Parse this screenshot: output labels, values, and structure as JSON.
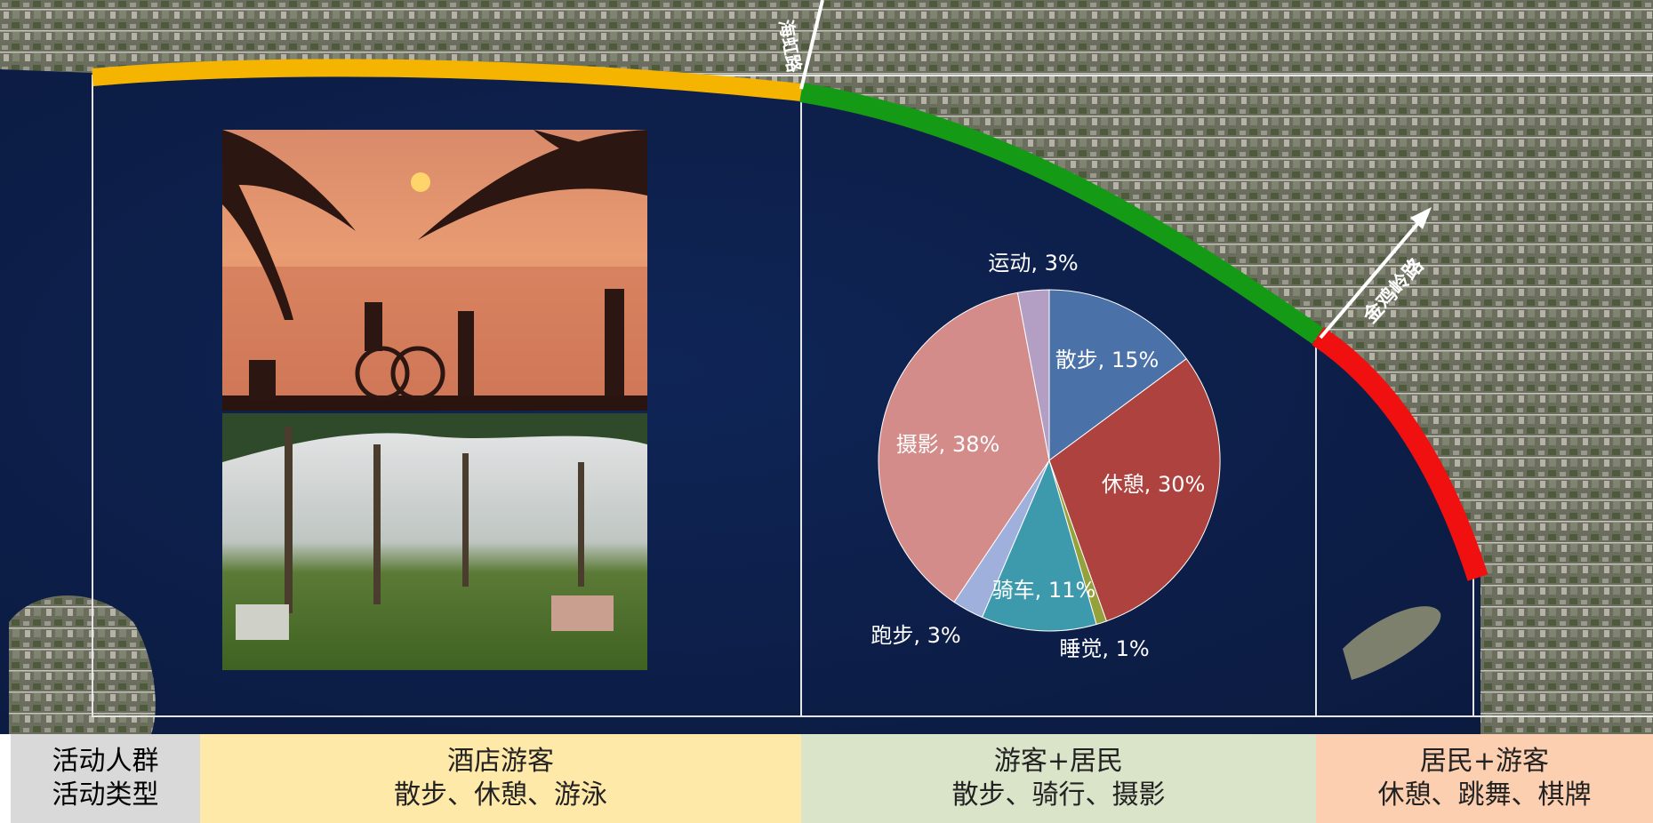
{
  "road_labels": [
    "海虹路",
    "金鸡岭路"
  ],
  "chart_data": {
    "type": "pie",
    "values": [
      15,
      30,
      1,
      11,
      3,
      38,
      3
    ],
    "value_labels": [
      "散步, 15%",
      "休憩, 30%",
      "睡觉, 1%",
      "骑车, 11%",
      "跑步, 3%",
      "摄影, 38%",
      "运动, 3%"
    ],
    "colors": [
      "#4a71a8",
      "#ad423f",
      "#95a13c",
      "#3d9aad",
      "#9fb0dc",
      "#d48c8a",
      "#b39fc4"
    ]
  },
  "table": {
    "header": [
      "活动人群",
      "活动类型"
    ],
    "columns": [
      {
        "group": "酒店游客",
        "activities": "散步、休憩、游泳"
      },
      {
        "group": "游客+居民",
        "activities": "散步、骑行、摄影"
      },
      {
        "group": "居民+游客",
        "activities": "休憩、跳舞、棋牌"
      }
    ]
  }
}
